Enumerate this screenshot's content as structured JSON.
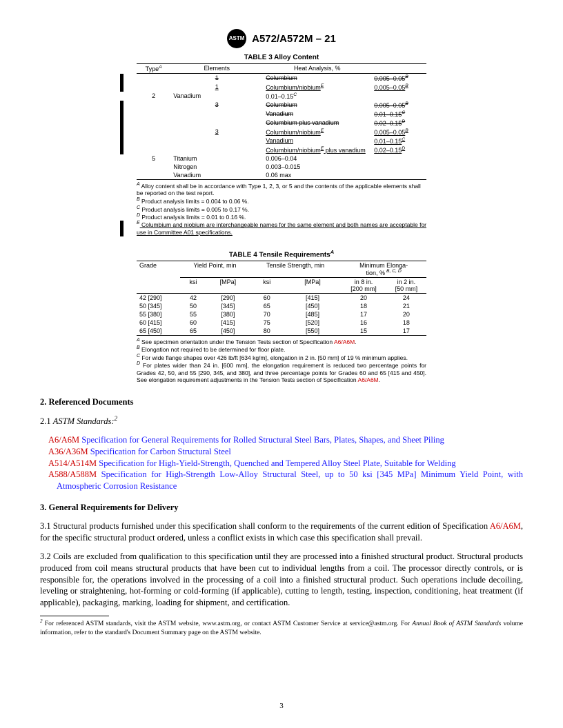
{
  "header": {
    "logo_text": "ASTM",
    "standard": "A572/A572M – 21"
  },
  "table3": {
    "title": "TABLE 3 Alloy Content",
    "headers": {
      "type": "Type",
      "type_sup": "A",
      "elem": "Elements",
      "heat": "Heat Analysis, %"
    },
    "rows": [
      {
        "type": "1",
        "type_strike": true,
        "elem": "Columbium",
        "elem_sup": "",
        "elem_strike": true,
        "heat": "0.005–0.05",
        "heat_sup": "B",
        "heat_strike": true,
        "rev": true
      },
      {
        "type": "1",
        "type_ul": true,
        "elem": "Columbium/niobium",
        "elem_sup": "E",
        "elem_ul": true,
        "heat": "0.005–0.05",
        "heat_sup": "B",
        "heat_ul": true,
        "rev": true
      },
      {
        "type": "2",
        "elem": "Vanadium",
        "heat": "0.01–0.15",
        "heat_sup": "C"
      },
      {
        "type": "3",
        "type_strike": true,
        "elem": "Columbium",
        "elem_strike": true,
        "heat": "0.005–0.05",
        "heat_sup": "B",
        "heat_strike": true,
        "rev": true
      },
      {
        "type": "",
        "elem": "Vanadium",
        "elem_strike": true,
        "heat": "0.01–0.15",
        "heat_sup": "C",
        "heat_strike": true,
        "rev": true
      },
      {
        "type": "",
        "elem": "Columbium plus vanadium",
        "elem_strike": true,
        "heat": "0.02–0.15",
        "heat_sup": "D",
        "heat_strike": true,
        "rev": true
      },
      {
        "type": "3",
        "type_ul": true,
        "elem": "Columbium/niobium",
        "elem_sup": "E",
        "elem_ul": true,
        "heat": "0.005–0.05",
        "heat_sup": "B",
        "heat_ul": true,
        "rev": true
      },
      {
        "type": "",
        "elem": "Vanadium",
        "elem_ul": true,
        "heat": "0.01–0.15",
        "heat_sup": "C",
        "heat_ul": true,
        "rev": true
      },
      {
        "type": "",
        "elem": "Columbium/niobium",
        "elem_sup": "E",
        "elem_tail": " plus vanadium",
        "elem_ul": true,
        "heat": "0.02–0.15",
        "heat_sup": "D",
        "heat_ul": true,
        "rev": true
      },
      {
        "type": "5",
        "elem": "Titanium",
        "heat": "0.006–0.04"
      },
      {
        "type": "",
        "elem": "Nitrogen",
        "heat": "0.003–0.015"
      },
      {
        "type": "",
        "elem": "Vanadium",
        "heat": "0.06 max",
        "last": true
      }
    ],
    "footnotes": [
      {
        "sup": "A",
        "text": " Alloy content shall be in accordance with Type 1, 2, 3, or 5 and the contents of the applicable elements shall be reported on the test report."
      },
      {
        "sup": "B",
        "text": " Product analysis limits = 0.004 to 0.06 %."
      },
      {
        "sup": "C",
        "text": " Product analysis limits = 0.005 to 0.17 %."
      },
      {
        "sup": "D",
        "text": " Product analysis limits = 0.01 to 0.16 %."
      },
      {
        "sup": "E",
        "text": " Columbium and niobium are interchangeable names for the same element and both names are acceptable for use in Committee A01 specifications.",
        "ul": true,
        "rev": true
      }
    ]
  },
  "table4": {
    "title": "TABLE 4 Tensile Requirements",
    "title_sup": "A",
    "head": {
      "grade": "Grade",
      "yield": "Yield Point, min",
      "tensile": "Tensile Strength, min",
      "elong": "Minimum Elonga-\ntion, %",
      "elong_sup": " B, C, D",
      "ksi": "ksi",
      "mpa": "[MPa]",
      "in8": "in 8 in.\n[200 mm]",
      "in2": "in 2 in.\n[50 mm]"
    },
    "rows": [
      {
        "grade": "42 [290]",
        "yk": "42",
        "ym": "[290]",
        "tk": "60",
        "tm": "[415]",
        "e8": "20",
        "e2": "24"
      },
      {
        "grade": "50 [345]",
        "yk": "50",
        "ym": "[345]",
        "tk": "65",
        "tm": "[450]",
        "e8": "18",
        "e2": "21"
      },
      {
        "grade": "55 [380]",
        "yk": "55",
        "ym": "[380]",
        "tk": "70",
        "tm": "[485]",
        "e8": "17",
        "e2": "20"
      },
      {
        "grade": "60 [415]",
        "yk": "60",
        "ym": "[415]",
        "tk": "75",
        "tm": "[520]",
        "e8": "16",
        "e2": "18"
      },
      {
        "grade": "65 [450]",
        "yk": "65",
        "ym": "[450]",
        "tk": "80",
        "tm": "[550]",
        "e8": "15",
        "e2": "17",
        "last": true
      }
    ],
    "footnotes": {
      "A_pre": " See specimen orientation under the Tension Tests section of Specification ",
      "A_link": "A6/A6M",
      "A_post": ".",
      "B": " Elongation not required to be determined for floor plate.",
      "C": " For wide flange shapes over 426 lb/ft [634 kg/m], elongation in 2 in. [50 mm] of 19 % minimum applies.",
      "D_pre": " For plates wider than 24 in. [600 mm], the elongation requirement is reduced two percentage points for Grades 42, 50, and 55 [290, 345, and 380], and three percentage points for Grades 60 and 65 [415 and 450]. See elongation requirement adjustments in the Tension Tests section of Specification ",
      "D_link": "A6/A6M",
      "D_post": "."
    }
  },
  "sections": {
    "s2_title": "2.  Referenced Documents",
    "s2_1": "2.1  ",
    "s2_1_it": "ASTM Standards:",
    "s2_1_sup": "2",
    "refs": [
      {
        "code": "A6/A6M",
        "desc": " Specification for General Requirements for Rolled Structural Steel Bars, Plates, Shapes, and Sheet Piling"
      },
      {
        "code": "A36/A36M",
        "desc": " Specification for Carbon Structural Steel"
      },
      {
        "code": "A514/A514M",
        "desc": " Specification for High-Yield-Strength, Quenched and Tempered Alloy Steel Plate, Suitable for Welding"
      },
      {
        "code": "A588/A588M",
        "desc": " Specification for High-Strength Low-Alloy Structural Steel, up to 50 ksi [345 MPa] Minimum Yield Point, with Atmospheric Corrosion Resistance"
      }
    ],
    "s3_title": "3.  General Requirements for Delivery",
    "s3_1_pre": "3.1  Structural products furnished under this specification shall conform to the requirements of the current edition of Specification ",
    "s3_1_link": "A6/A6M",
    "s3_1_post": ", for the specific structural product ordered, unless a conflict exists in which case this specification shall prevail.",
    "s3_2": "3.2  Coils are excluded from qualification to this specification until they are processed into a finished structural product. Structural products produced from coil means structural products that have been cut to individual lengths from a coil. The processor directly controls, or is responsible for, the operations involved in the processing of a coil into a finished structural product. Such operations include decoiling, leveling or straightening, hot-forming or cold-forming (if applicable), cutting to length, testing, inspection, conditioning, heat treatment (if applicable), packaging, marking, loading for shipment, and certification."
  },
  "bottomnote": {
    "sup": "2",
    "t1": " For referenced ASTM standards, visit the ASTM website, www.astm.org, or contact ASTM Customer Service at service@astm.org. For ",
    "it": "Annual Book of ASTM Standards",
    "t2": " volume information, refer to the standard's Document Summary page on the ASTM website."
  },
  "page_no": "3"
}
